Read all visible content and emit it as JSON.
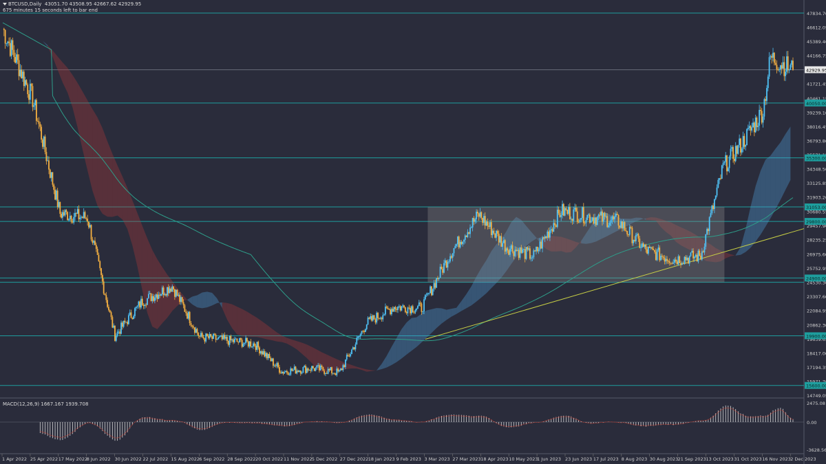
{
  "header": {
    "symbol": "BTCUSD,Daily",
    "ohlc": "43051.70 43508.95 42667.62 42929.95",
    "countdown": "675 minutes 15 seconds left to bar end"
  },
  "colors": {
    "background": "#2a2c3b",
    "grid_line": "#1e9e9e",
    "bull_candle": "#4fc3f7",
    "bear_candle": "#f5b041",
    "kumo_bull": "#4fa3e0",
    "kumo_bear": "#b03a3a",
    "ma_line": "#2e9e8a",
    "trendline": "#c8cf45",
    "range_box": "#8a8a8a"
  },
  "price_axis": {
    "labels": [
      "47834.70",
      "46612.05",
      "45389.40",
      "44166.75",
      "42929.95",
      "41721.45",
      "40461.15",
      "39239.10",
      "38016.45",
      "36793.80",
      "35571.15",
      "34348.50",
      "33125.85",
      "31903.20",
      "30680.55",
      "29457.90",
      "28235.25",
      "26975.60",
      "25752.95",
      "24530.30",
      "23307.60",
      "22084.95",
      "20862.30",
      "19639.65",
      "18417.00",
      "17194.35",
      "15971.70",
      "14749.05"
    ],
    "current_price": "42929.95",
    "level_tags": [
      "40050.00",
      "35300.00",
      "31053.00",
      "29800.00",
      "24900.00",
      "19900.00",
      "15600.00"
    ]
  },
  "macd": {
    "label": "MACD(12,26,9) 1667.167 1939.708",
    "axis_labels": [
      "2475.08",
      "0.00",
      "-3628.56"
    ]
  },
  "date_axis": {
    "labels": [
      "1 Apr 2022",
      "25 Apr 2022",
      "17 May 2022",
      "8 Jun 2022",
      "30 Jun 2022",
      "22 Jul 2022",
      "15 Aug 2022",
      "6 Sep 2022",
      "28 Sep 2022",
      "20 Oct 2022",
      "11 Nov 2022",
      "5 Dec 2022",
      "27 Dec 2022",
      "18 Jan 2023",
      "9 Feb 2023",
      "3 Mar 2023",
      "27 Mar 2023",
      "18 Apr 2023",
      "10 May 2023",
      "1 Jun 2023",
      "23 Jun 2023",
      "17 Jul 2023",
      "8 Aug 2023",
      "30 Aug 2023",
      "21 Sep 2023",
      "13 Oct 2023",
      "31 Oct 2023",
      "16 Nov 2023",
      "2 Dec 2023"
    ]
  },
  "chart_data": {
    "type": "candlestick",
    "symbol": "BTCUSD",
    "timeframe": "Daily",
    "ylim": [
      14749.05,
      47834.7
    ],
    "horizontal_levels": [
      47834.7,
      42929.95,
      40050,
      35300,
      31053,
      29800,
      24900,
      24530,
      19900,
      15600
    ],
    "range_box": {
      "from": "8 Mar 2023",
      "to": "1 Nov 2023",
      "low": 24530,
      "high": 31053
    },
    "trendline": [
      {
        "date": "6 Mar 2023",
        "value": 19600
      },
      {
        "date": "26 Dec 2023",
        "value": 28700
      }
    ],
    "approx_closes": [
      {
        "date": "1 Apr 2022",
        "close": 46500
      },
      {
        "date": "25 Apr 2022",
        "close": 40400
      },
      {
        "date": "17 May 2022",
        "close": 30500
      },
      {
        "date": "8 Jun 2022",
        "close": 30100
      },
      {
        "date": "30 Jun 2022",
        "close": 19900
      },
      {
        "date": "22 Jul 2022",
        "close": 22900
      },
      {
        "date": "15 Aug 2022",
        "close": 24200
      },
      {
        "date": "6 Sep 2022",
        "close": 19800
      },
      {
        "date": "28 Sep 2022",
        "close": 19500
      },
      {
        "date": "20 Oct 2022",
        "close": 19200
      },
      {
        "date": "11 Nov 2022",
        "close": 16800
      },
      {
        "date": "5 Dec 2022",
        "close": 17100
      },
      {
        "date": "27 Dec 2022",
        "close": 16700
      },
      {
        "date": "18 Jan 2023",
        "close": 21000
      },
      {
        "date": "9 Feb 2023",
        "close": 22400
      },
      {
        "date": "3 Mar 2023",
        "close": 22300
      },
      {
        "date": "27 Mar 2023",
        "close": 27200
      },
      {
        "date": "18 Apr 2023",
        "close": 30400
      },
      {
        "date": "10 May 2023",
        "close": 27600
      },
      {
        "date": "1 Jun 2023",
        "close": 26800
      },
      {
        "date": "23 Jun 2023",
        "close": 30700
      },
      {
        "date": "17 Jul 2023",
        "close": 30200
      },
      {
        "date": "8 Aug 2023",
        "close": 29800
      },
      {
        "date": "30 Aug 2023",
        "close": 27300
      },
      {
        "date": "21 Sep 2023",
        "close": 26500
      },
      {
        "date": "13 Oct 2023",
        "close": 26800
      },
      {
        "date": "31 Oct 2023",
        "close": 34500
      },
      {
        "date": "16 Nov 2023",
        "close": 36700
      },
      {
        "date": "2 Dec 2023",
        "close": 39400
      },
      {
        "date": "8 Dec 2023",
        "close": 44000
      },
      {
        "date": "26 Dec 2023",
        "close": 42929.95
      }
    ]
  }
}
